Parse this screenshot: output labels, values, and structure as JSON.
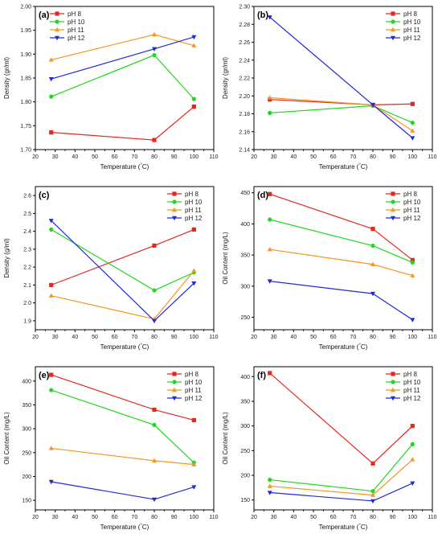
{
  "chart_data": [
    {
      "type": "line",
      "panel_label": "(a)",
      "xlabel": "Temperature (°C)",
      "ylabel": "Density (gr/ml)",
      "xlim": [
        20,
        110
      ],
      "ylim": [
        1.7,
        2.0
      ],
      "xticks": [
        "20",
        "30",
        "40",
        "50",
        "60",
        "70",
        "80",
        "90",
        "100",
        "110"
      ],
      "yticks": [
        "1.70",
        "1.75",
        "1.80",
        "1.85",
        "1.90",
        "1.95",
        "2.00"
      ],
      "legend_position": "top-left",
      "x": [
        28,
        80,
        100
      ],
      "series": [
        {
          "name": "pH 8",
          "color": "#e8251f",
          "marker": "square",
          "values": [
            1.736,
            1.72,
            1.79
          ]
        },
        {
          "name": "pH 10",
          "color": "#1fd81f",
          "marker": "circle",
          "values": [
            1.811,
            1.898,
            1.806
          ]
        },
        {
          "name": "pH 11",
          "color": "#f5961f",
          "marker": "triangle-up",
          "values": [
            1.888,
            1.941,
            1.918
          ]
        },
        {
          "name": "pH 12",
          "color": "#1f2ad8",
          "marker": "triangle-down",
          "values": [
            1.848,
            1.911,
            1.936
          ]
        }
      ]
    },
    {
      "type": "line",
      "panel_label": "(b)",
      "xlabel": "Temperature (°C)",
      "ylabel": "Density (gr/ml)",
      "xlim": [
        20,
        110
      ],
      "ylim": [
        2.14,
        2.3
      ],
      "xticks": [
        "20",
        "30",
        "40",
        "50",
        "60",
        "70",
        "80",
        "90",
        "100",
        "110"
      ],
      "yticks": [
        "2.14",
        "2.16",
        "2.18",
        "2.20",
        "2.22",
        "2.24",
        "2.26",
        "2.28",
        "2.30"
      ],
      "legend_position": "top-right",
      "x": [
        28,
        80,
        100
      ],
      "series": [
        {
          "name": "pH 8",
          "color": "#e8251f",
          "marker": "square",
          "values": [
            2.196,
            2.19,
            2.191
          ]
        },
        {
          "name": "pH 10",
          "color": "#1fd81f",
          "marker": "circle",
          "values": [
            2.181,
            2.189,
            2.17
          ]
        },
        {
          "name": "pH 11",
          "color": "#f5961f",
          "marker": "triangle-up",
          "values": [
            2.198,
            2.19,
            2.161
          ]
        },
        {
          "name": "pH 12",
          "color": "#1f2ad8",
          "marker": "triangle-down",
          "values": [
            2.288,
            2.19,
            2.153
          ]
        }
      ]
    },
    {
      "type": "line",
      "panel_label": "(c)",
      "xlabel": "Temperature (°C)",
      "ylabel": "Density (g/ml)",
      "xlim": [
        20,
        110
      ],
      "ylim": [
        1.85,
        2.65
      ],
      "xticks": [
        "20",
        "30",
        "40",
        "50",
        "60",
        "70",
        "80",
        "90",
        "100",
        "110"
      ],
      "yticks": [
        "1.9",
        "2.0",
        "2.1",
        "2.2",
        "2.3",
        "2.4",
        "2.5",
        "2.6"
      ],
      "legend_position": "top-right",
      "x": [
        28,
        80,
        100
      ],
      "series": [
        {
          "name": "pH 8",
          "color": "#e8251f",
          "marker": "square",
          "values": [
            2.1,
            2.32,
            2.41
          ]
        },
        {
          "name": "pH 10",
          "color": "#1fd81f",
          "marker": "circle",
          "values": [
            2.41,
            2.07,
            2.17
          ]
        },
        {
          "name": "pH 11",
          "color": "#f5961f",
          "marker": "triangle-up",
          "values": [
            2.04,
            1.91,
            2.18
          ]
        },
        {
          "name": "pH 12",
          "color": "#1f2ad8",
          "marker": "triangle-down",
          "values": [
            2.46,
            1.9,
            2.11
          ]
        }
      ]
    },
    {
      "type": "line",
      "panel_label": "(d)",
      "xlabel": "Temperature (°C)",
      "ylabel": "Oil Content (mg/L)",
      "xlim": [
        20,
        110
      ],
      "ylim": [
        230,
        460
      ],
      "xticks": [
        "20",
        "30",
        "40",
        "50",
        "60",
        "70",
        "80",
        "90",
        "100",
        "110"
      ],
      "yticks": [
        "250",
        "300",
        "350",
        "400",
        "450"
      ],
      "legend_position": "top-right",
      "x": [
        28,
        80,
        100
      ],
      "series": [
        {
          "name": "pH 8",
          "color": "#e8251f",
          "marker": "square",
          "values": [
            448,
            392,
            342
          ]
        },
        {
          "name": "pH 10",
          "color": "#1fd81f",
          "marker": "circle",
          "values": [
            407,
            365,
            338
          ]
        },
        {
          "name": "pH 11",
          "color": "#f5961f",
          "marker": "triangle-up",
          "values": [
            359,
            335,
            317
          ]
        },
        {
          "name": "pH 12",
          "color": "#1f2ad8",
          "marker": "triangle-down",
          "values": [
            308,
            288,
            246
          ]
        }
      ]
    },
    {
      "type": "line",
      "panel_label": "(e)",
      "xlabel": "Temperature (°C)",
      "ylabel": "Oil Content (mg/L)",
      "xlim": [
        20,
        110
      ],
      "ylim": [
        130,
        430
      ],
      "xticks": [
        "20",
        "30",
        "40",
        "50",
        "60",
        "70",
        "80",
        "90",
        "100",
        "110"
      ],
      "yticks": [
        "150",
        "200",
        "250",
        "300",
        "350",
        "400"
      ],
      "legend_position": "top-right",
      "x": [
        28,
        80,
        100
      ],
      "series": [
        {
          "name": "pH 8",
          "color": "#e8251f",
          "marker": "square",
          "values": [
            413,
            340,
            318
          ]
        },
        {
          "name": "pH 10",
          "color": "#1fd81f",
          "marker": "circle",
          "values": [
            381,
            308,
            229
          ]
        },
        {
          "name": "pH 11",
          "color": "#f5961f",
          "marker": "triangle-up",
          "values": [
            259,
            233,
            225
          ]
        },
        {
          "name": "pH 12",
          "color": "#1f2ad8",
          "marker": "triangle-down",
          "values": [
            189,
            152,
            178
          ]
        }
      ]
    },
    {
      "type": "line",
      "panel_label": "(f)",
      "xlabel": "Temperature (°C)",
      "ylabel": "Oil Content (mg/L)",
      "xlim": [
        20,
        110
      ],
      "ylim": [
        130,
        420
      ],
      "xticks": [
        "20",
        "30",
        "40",
        "50",
        "60",
        "70",
        "80",
        "90",
        "100",
        "110"
      ],
      "yticks": [
        "150",
        "200",
        "250",
        "300",
        "350",
        "400"
      ],
      "legend_position": "top-right",
      "x": [
        28,
        80,
        100
      ],
      "series": [
        {
          "name": "pH 8",
          "color": "#e8251f",
          "marker": "square",
          "values": [
            407,
            224,
            300
          ]
        },
        {
          "name": "pH 10",
          "color": "#1fd81f",
          "marker": "circle",
          "values": [
            191,
            168,
            263
          ]
        },
        {
          "name": "pH 11",
          "color": "#f5961f",
          "marker": "triangle-up",
          "values": [
            178,
            160,
            232
          ]
        },
        {
          "name": "pH 12",
          "color": "#1f2ad8",
          "marker": "triangle-down",
          "values": [
            165,
            148,
            184
          ]
        }
      ]
    }
  ]
}
